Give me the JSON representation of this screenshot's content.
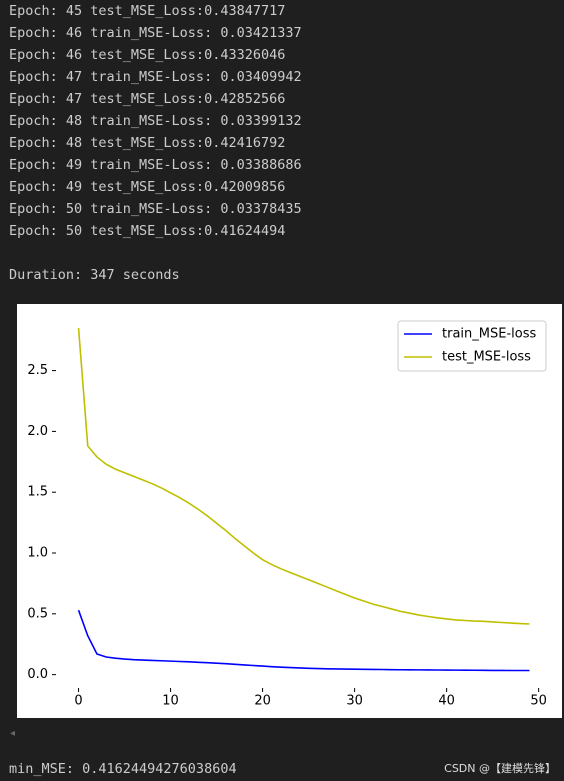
{
  "log_lines": [
    "Epoch: 45 test_MSE_Loss:0.43847717",
    "Epoch: 46 train_MSE-Loss: 0.03421337",
    "Epoch: 46 test_MSE_Loss:0.43326046",
    "Epoch: 47 train_MSE-Loss: 0.03409942",
    "Epoch: 47 test_MSE_Loss:0.42852566",
    "Epoch: 48 train_MSE-Loss: 0.03399132",
    "Epoch: 48 test_MSE_Loss:0.42416792",
    "Epoch: 49 train_MSE-Loss: 0.03388686",
    "Epoch: 49 test_MSE_Loss:0.42009856",
    "Epoch: 50 train_MSE-Loss: 0.03378435",
    "Epoch: 50 test_MSE_Loss:0.41624494"
  ],
  "duration": "Duration: 347 seconds",
  "chart_data": {
    "type": "line",
    "x": [
      0,
      1,
      2,
      3,
      4,
      5,
      6,
      7,
      8,
      9,
      10,
      11,
      12,
      13,
      14,
      15,
      16,
      17,
      18,
      19,
      20,
      21,
      22,
      23,
      24,
      25,
      26,
      27,
      28,
      29,
      30,
      31,
      32,
      33,
      34,
      35,
      36,
      37,
      38,
      39,
      40,
      41,
      42,
      43,
      44,
      45,
      46,
      47,
      48,
      49
    ],
    "series": [
      {
        "name": "train_MSE-loss",
        "color": "#0000ff",
        "values": [
          0.53,
          0.32,
          0.17,
          0.145,
          0.135,
          0.128,
          0.123,
          0.12,
          0.117,
          0.114,
          0.111,
          0.108,
          0.105,
          0.101,
          0.098,
          0.094,
          0.09,
          0.085,
          0.08,
          0.075,
          0.07,
          0.065,
          0.061,
          0.058,
          0.055,
          0.052,
          0.05,
          0.048,
          0.047,
          0.046,
          0.045,
          0.044,
          0.043,
          0.042,
          0.041,
          0.04,
          0.0395,
          0.039,
          0.0385,
          0.038,
          0.0375,
          0.037,
          0.0365,
          0.036,
          0.0355,
          0.03421337,
          0.03409942,
          0.03399132,
          0.03388686,
          0.03378435
        ]
      },
      {
        "name": "test_MSE-loss",
        "color": "#bfbf00",
        "values": [
          2.85,
          1.88,
          1.79,
          1.73,
          1.69,
          1.66,
          1.63,
          1.6,
          1.57,
          1.535,
          1.495,
          1.455,
          1.41,
          1.36,
          1.305,
          1.245,
          1.185,
          1.12,
          1.06,
          1.0,
          0.945,
          0.905,
          0.87,
          0.84,
          0.81,
          0.78,
          0.75,
          0.72,
          0.69,
          0.66,
          0.63,
          0.605,
          0.58,
          0.56,
          0.54,
          0.52,
          0.505,
          0.49,
          0.478,
          0.467,
          0.458,
          0.45,
          0.445,
          0.44,
          0.43847717,
          0.43326046,
          0.42852566,
          0.42416792,
          0.42009856,
          0.41624494
        ]
      }
    ],
    "xlim": [
      -2.45,
      51.45
    ],
    "xticks": [
      0,
      10,
      20,
      30,
      40,
      50
    ],
    "ylim": [
      -0.11,
      2.99
    ],
    "yticks": [
      {
        "value": 0,
        "label": "0.0"
      },
      {
        "value": 0.5,
        "label": "0.5"
      },
      {
        "value": 1,
        "label": "1.0"
      },
      {
        "value": 1.5,
        "label": "1.5"
      },
      {
        "value": 2,
        "label": "2.0"
      },
      {
        "value": 2.5,
        "label": "2.5"
      }
    ],
    "legend": "upper right"
  },
  "result": "min_MSE: 0.41624494276038604",
  "watermark": "CSDN @【建模先锋】"
}
